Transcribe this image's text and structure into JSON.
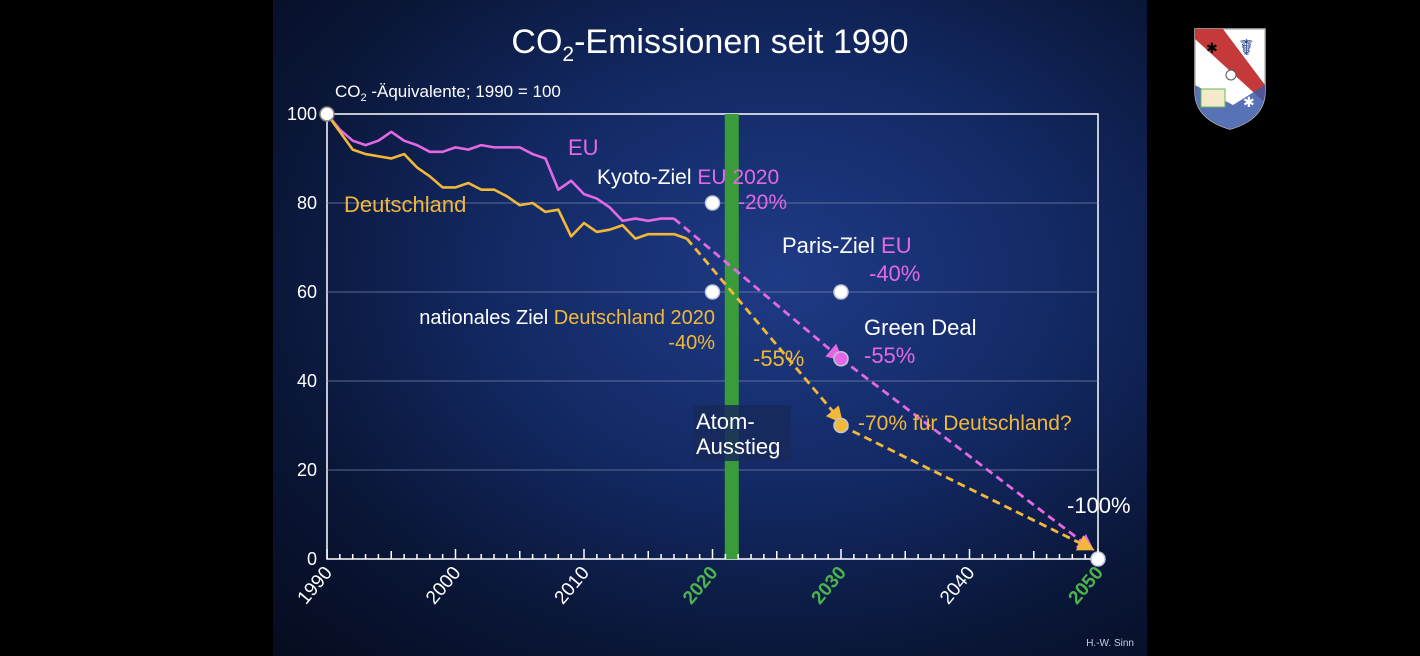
{
  "slide": {
    "credit": "H.-W. Sinn"
  },
  "colors": {
    "eu": "#e468e4",
    "germany": "#f3b83a",
    "text": "#ffffff",
    "green": "#3a9b3a",
    "green_text": "#4db34d"
  },
  "chart_data": {
    "type": "line",
    "title_main": "CO",
    "title_sub": "2",
    "title_rest": "-Emissionen seit 1990",
    "ylabel_main": "CO",
    "ylabel_sub": "2",
    "ylabel_rest": " -Äquivalente; 1990 = 100",
    "xlim": [
      1990,
      2050
    ],
    "ylim": [
      0,
      100
    ],
    "x_ticks": [
      1990,
      2000,
      2010,
      2020,
      2030,
      2040,
      2050
    ],
    "x_ticks_highlight": [
      2020,
      2030,
      2050
    ],
    "y_ticks": [
      0,
      20,
      40,
      60,
      80,
      100
    ],
    "series": [
      {
        "name": "EU",
        "x": [
          1990,
          1991,
          1992,
          1993,
          1994,
          1995,
          1996,
          1997,
          1998,
          1999,
          2000,
          2001,
          2002,
          2003,
          2004,
          2005,
          2006,
          2007,
          2008,
          2009,
          2010,
          2011,
          2012,
          2013,
          2014,
          2015,
          2016,
          2017
        ],
        "y": [
          100,
          96.5,
          94,
          93,
          94,
          96,
          94,
          93,
          91.5,
          91.5,
          92.5,
          92,
          93,
          92.5,
          92.5,
          92.5,
          91,
          90,
          83,
          85,
          82,
          81,
          79,
          76,
          76.5,
          76,
          76.5,
          76.5
        ]
      },
      {
        "name": "Deutschland",
        "x": [
          1990,
          1991,
          1992,
          1993,
          1994,
          1995,
          1996,
          1997,
          1998,
          1999,
          2000,
          2001,
          2002,
          2003,
          2004,
          2005,
          2006,
          2007,
          2008,
          2009,
          2010,
          2011,
          2012,
          2013,
          2014,
          2015,
          2016,
          2017,
          2018
        ],
        "y": [
          100,
          96,
          92,
          91,
          90.5,
          90,
          91,
          88,
          86,
          83.5,
          83.5,
          84.5,
          83,
          83,
          81.5,
          79.5,
          80,
          78,
          78.5,
          72.5,
          75.5,
          73.5,
          74,
          75,
          72,
          73,
          73,
          73,
          72
        ]
      }
    ],
    "targets": [
      {
        "label": "Kyoto-Ziel",
        "region": "EU",
        "year_label": "2020",
        "value_label": "-20%",
        "x": 2020,
        "y": 80,
        "color": "white"
      },
      {
        "label": "Paris-Ziel",
        "region": "EU",
        "value_label": "-40%",
        "x": 2030,
        "y": 60,
        "color": "white"
      },
      {
        "label": "nationales Ziel",
        "region": "Deutschland 2020",
        "value_label": "-40%",
        "x": 2020,
        "y": 60,
        "color": "white"
      },
      {
        "label": "Green Deal",
        "value_label": "-55%",
        "x": 2030,
        "y": 45,
        "color": "eu"
      },
      {
        "label": "-70% für Deutschland?",
        "x": 2030,
        "y": 30,
        "color": "germany"
      },
      {
        "label": "-100%",
        "x": 2050,
        "y": 0,
        "color": "white"
      }
    ],
    "germany_path_label": "-55%",
    "projections": [
      {
        "series": "EU",
        "from": [
          2017,
          76.5
        ],
        "to": [
          2030,
          45
        ],
        "color": "eu"
      },
      {
        "series": "EU",
        "from": [
          2030,
          45
        ],
        "to": [
          2049.5,
          2.3
        ],
        "color": "eu"
      },
      {
        "series": "Deutschland",
        "from": [
          2018,
          72
        ],
        "to": [
          2030,
          31
        ],
        "color": "germany"
      },
      {
        "series": "Deutschland",
        "from": [
          2030,
          30
        ],
        "to": [
          2049.5,
          2.3
        ],
        "color": "germany"
      }
    ],
    "event_band": {
      "label_line1": "Atom-",
      "label_line2": "Ausstieg",
      "x": 2021.5
    },
    "grid": true
  }
}
